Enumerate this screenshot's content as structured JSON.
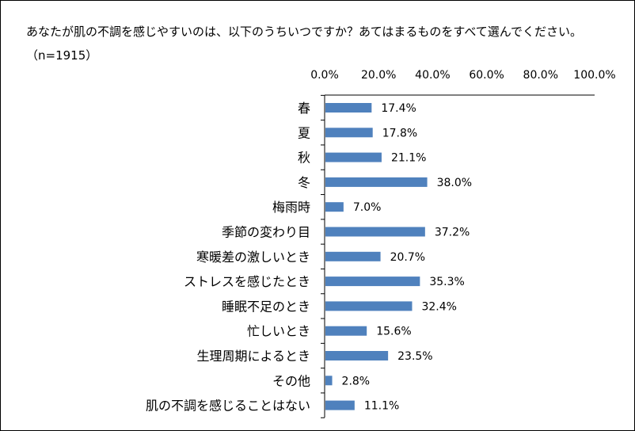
{
  "title": "あなたが肌の不調を感じやすいのは、以下のうちいつですか？あてはまるものをすべて選んでください。（n=1915）",
  "chart_data": {
    "type": "bar",
    "orientation": "horizontal",
    "categories": [
      "春",
      "夏",
      "秋",
      "冬",
      "梅雨時",
      "季節の変わり目",
      "寒暖差の激しいとき",
      "ストレスを感じたとき",
      "睡眠不足のとき",
      "忙しいとき",
      "生理周期によるとき",
      "その他",
      "肌の不調を感じることはない"
    ],
    "values": [
      17.4,
      17.8,
      21.1,
      38.0,
      7.0,
      37.2,
      20.7,
      35.3,
      32.4,
      15.6,
      23.5,
      2.8,
      11.1
    ],
    "value_labels": [
      "17.4%",
      "17.8%",
      "21.1%",
      "38.0%",
      "7.0%",
      "37.2%",
      "20.7%",
      "35.3%",
      "32.4%",
      "15.6%",
      "23.5%",
      "2.8%",
      "11.1%"
    ],
    "tick_labels": [
      "0.0%",
      "20.0%",
      "40.0%",
      "60.0%",
      "80.0%",
      "100.0%"
    ],
    "xlim": [
      0,
      100
    ],
    "axis_position": "top",
    "grid": false,
    "bar_color": "#4f81bd"
  }
}
